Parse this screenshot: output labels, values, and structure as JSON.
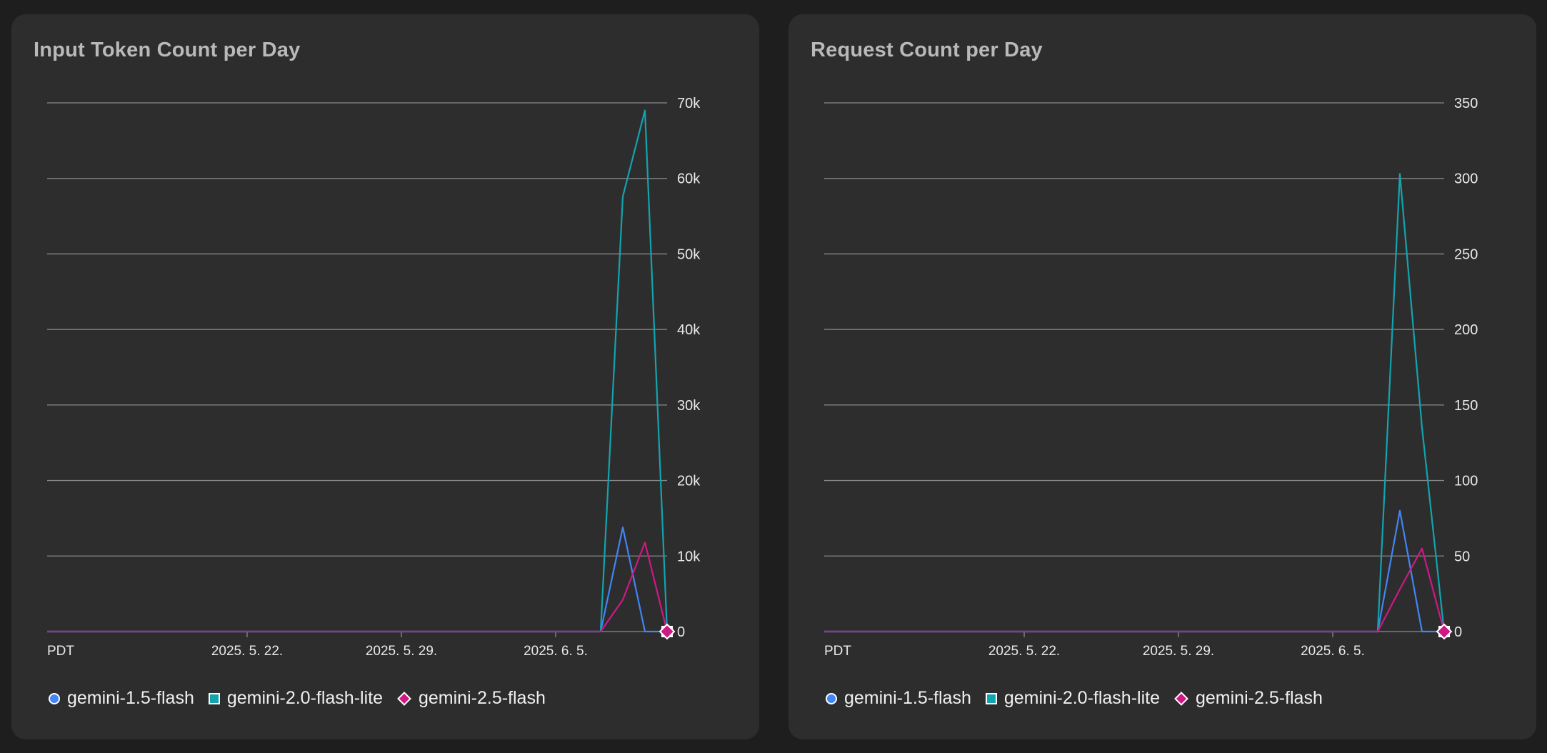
{
  "legend": {
    "items": [
      {
        "name": "gemini-1.5-flash",
        "icon": "circle-marker-icon",
        "color": "#4285f4"
      },
      {
        "name": "gemini-2.0-flash-lite",
        "icon": "square-marker-icon",
        "color": "#12a4af"
      },
      {
        "name": "gemini-2.5-flash",
        "icon": "diamond-marker-icon",
        "color": "#d01884"
      }
    ]
  },
  "colors": {
    "background": "#1e1e1e",
    "panel": "#2d2d2d",
    "gridline": "#8a8a8a",
    "axis_text": "#e8e8e8",
    "title_text": "#b9b9b9"
  },
  "chart_data": [
    {
      "type": "line",
      "title": "Input Token Count per Day",
      "x_label": "PDT",
      "x_ticks": [
        "2025. 5. 22.",
        "2025. 5. 29.",
        "2025. 6. 5."
      ],
      "x_range": [
        "2025-05-13",
        "2025-06-10"
      ],
      "ylim": [
        0,
        70000
      ],
      "y_ticks": [
        "0",
        "10k",
        "20k",
        "30k",
        "40k",
        "50k",
        "60k",
        "70k"
      ],
      "y_axis_side": "right",
      "grid": true,
      "legend_position": "bottom",
      "series": [
        {
          "name": "gemini-1.5-flash",
          "color": "#4285f4",
          "marker": "circle",
          "points": [
            [
              "2025-05-13",
              0
            ],
            [
              "2025-06-07",
              0
            ],
            [
              "2025-06-08",
              13800
            ],
            [
              "2025-06-09",
              0
            ],
            [
              "2025-06-10",
              0
            ]
          ]
        },
        {
          "name": "gemini-2.0-flash-lite",
          "color": "#12a4af",
          "marker": "square",
          "points": [
            [
              "2025-05-13",
              0
            ],
            [
              "2025-06-07",
              0
            ],
            [
              "2025-06-08",
              57600
            ],
            [
              "2025-06-09",
              69000
            ],
            [
              "2025-06-10",
              0
            ]
          ]
        },
        {
          "name": "gemini-2.5-flash",
          "color": "#d01884",
          "marker": "diamond",
          "points": [
            [
              "2025-05-13",
              0
            ],
            [
              "2025-06-07",
              0
            ],
            [
              "2025-06-08",
              4200
            ],
            [
              "2025-06-09",
              11800
            ],
            [
              "2025-06-10",
              0
            ]
          ]
        }
      ]
    },
    {
      "type": "line",
      "title": "Request Count per Day",
      "x_label": "PDT",
      "x_ticks": [
        "2025. 5. 22.",
        "2025. 5. 29.",
        "2025. 6. 5."
      ],
      "x_range": [
        "2025-05-13",
        "2025-06-10"
      ],
      "ylim": [
        0,
        350
      ],
      "y_ticks": [
        "0",
        "50",
        "100",
        "150",
        "200",
        "250",
        "300",
        "350"
      ],
      "y_axis_side": "right",
      "grid": true,
      "legend_position": "bottom",
      "series": [
        {
          "name": "gemini-1.5-flash",
          "color": "#4285f4",
          "marker": "circle",
          "points": [
            [
              "2025-05-13",
              0
            ],
            [
              "2025-06-07",
              0
            ],
            [
              "2025-06-08",
              80
            ],
            [
              "2025-06-09",
              0
            ],
            [
              "2025-06-10",
              0
            ]
          ]
        },
        {
          "name": "gemini-2.0-flash-lite",
          "color": "#12a4af",
          "marker": "square",
          "points": [
            [
              "2025-05-13",
              0
            ],
            [
              "2025-06-07",
              0
            ],
            [
              "2025-06-08",
              303
            ],
            [
              "2025-06-09",
              135
            ],
            [
              "2025-06-10",
              0
            ]
          ]
        },
        {
          "name": "gemini-2.5-flash",
          "color": "#d01884",
          "marker": "diamond",
          "points": [
            [
              "2025-05-13",
              0
            ],
            [
              "2025-06-07",
              0
            ],
            [
              "2025-06-08",
              28
            ],
            [
              "2025-06-09",
              55
            ],
            [
              "2025-06-10",
              0
            ]
          ]
        }
      ]
    }
  ]
}
